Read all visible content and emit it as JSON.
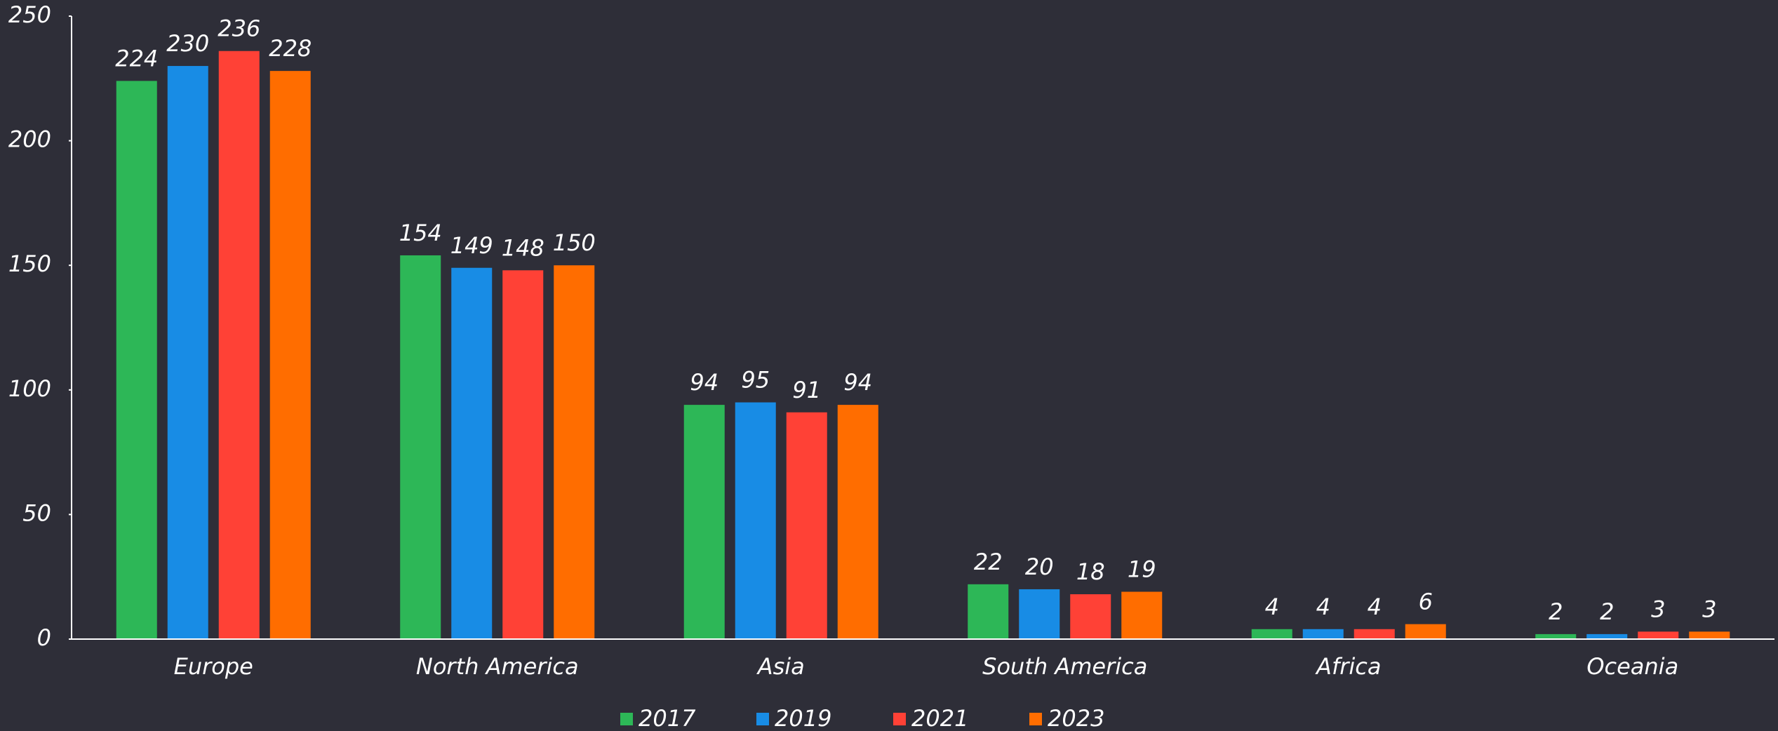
{
  "chart_data": {
    "type": "bar",
    "categories": [
      "Europe",
      "North America",
      "Asia",
      "South America",
      "Africa",
      "Oceania"
    ],
    "series": [
      {
        "name": "2017",
        "color": "#2db757",
        "values": [
          224,
          154,
          94,
          22,
          4,
          2
        ]
      },
      {
        "name": "2019",
        "color": "#188ce5",
        "values": [
          230,
          149,
          95,
          20,
          4,
          2
        ]
      },
      {
        "name": "2021",
        "color": "#ff4136",
        "values": [
          236,
          148,
          91,
          18,
          4,
          3
        ]
      },
      {
        "name": "2023",
        "color": "#ff6d00",
        "values": [
          228,
          150,
          94,
          19,
          6,
          3
        ]
      }
    ],
    "ylim": [
      0,
      250
    ],
    "yticks": [
      0,
      50,
      100,
      150,
      200,
      250
    ],
    "grid": false,
    "legend": "bottom"
  }
}
